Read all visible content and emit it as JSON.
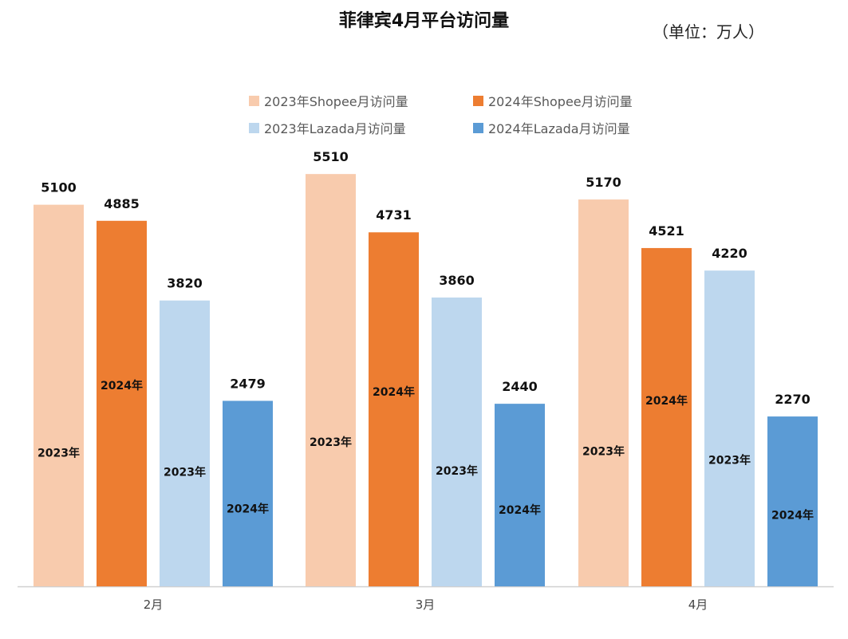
{
  "title": "菲律宾4月平台访问量",
  "unit": "（单位：万人）",
  "chart_data": {
    "type": "bar",
    "categories": [
      "2月",
      "3月",
      "4月"
    ],
    "series": [
      {
        "name": "2023年Shopee月访问量",
        "color": "#F8CBAD",
        "bar_label": "2023年",
        "values": [
          5100,
          5510,
          5170
        ]
      },
      {
        "name": "2024年Shopee月访问量",
        "color": "#ED7D31",
        "bar_label": "2024年",
        "values": [
          4885,
          4731,
          4521
        ]
      },
      {
        "name": "2023年Lazada月访问量",
        "color": "#BDD7EE",
        "bar_label": "2023年",
        "values": [
          3820,
          3860,
          4220
        ]
      },
      {
        "name": "2024年Lazada月访问量",
        "color": "#5B9BD5",
        "bar_label": "2024年",
        "values": [
          2479,
          2440,
          2270
        ]
      }
    ],
    "ylim": [
      0,
      6000
    ],
    "grid": false,
    "legend_position": "top"
  }
}
